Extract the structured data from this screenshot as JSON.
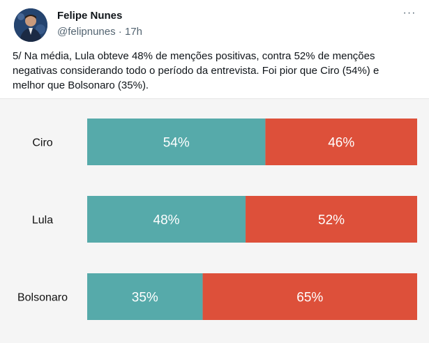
{
  "author": {
    "name": "Felipe Nunes",
    "handle": "@felipnunes",
    "separator": "·",
    "time": "17h"
  },
  "menu": {
    "more_label": "···"
  },
  "tweet": {
    "text": "5/ Na média, Lula obteve 48% de menções positivas, contra 52% de menções negativas considerando todo o período da entrevista. Foi pior que Ciro (54%) e melhor que Bolsonaro (35%)."
  },
  "colors": {
    "positive": "#56aaaa",
    "negative": "#dd503a",
    "chart_bg": "#f5f5f5"
  },
  "chart_data": {
    "type": "bar",
    "orientation": "horizontal",
    "stacked": true,
    "categories": [
      "Ciro",
      "Lula",
      "Bolsonaro"
    ],
    "series": [
      {
        "name": "positivas",
        "values": [
          54,
          48,
          35
        ],
        "labels": [
          "54%",
          "48%",
          "35%"
        ]
      },
      {
        "name": "negativas",
        "values": [
          46,
          52,
          65
        ],
        "labels": [
          "46%",
          "52%",
          "65%"
        ]
      }
    ],
    "xlim": [
      0,
      100
    ],
    "title": "",
    "xlabel": "",
    "ylabel": ""
  }
}
